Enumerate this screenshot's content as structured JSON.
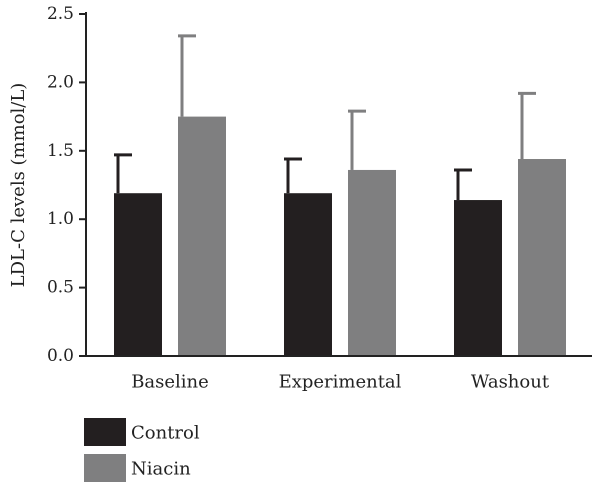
{
  "chart_data": {
    "type": "bar",
    "ylabel": "LDL-C levels (mmol/L)",
    "xlabel": "",
    "ylim": [
      0,
      2.5
    ],
    "yticks": [
      "0.0",
      "0.5",
      "1.0",
      "1.5",
      "2.0",
      "2.5"
    ],
    "categories": [
      "Baseline",
      "Experimental",
      "Washout"
    ],
    "series": [
      {
        "name": "Control",
        "color": "#231f20",
        "values": [
          1.19,
          1.19,
          1.14
        ],
        "error_upper": [
          1.47,
          1.44,
          1.36
        ]
      },
      {
        "name": "Niacin",
        "color": "#7f7f80",
        "values": [
          1.75,
          1.36,
          1.44
        ],
        "error_upper": [
          2.34,
          1.79,
          1.92
        ]
      }
    ],
    "error_bars": "upper only",
    "legend_position": "bottom-left"
  }
}
